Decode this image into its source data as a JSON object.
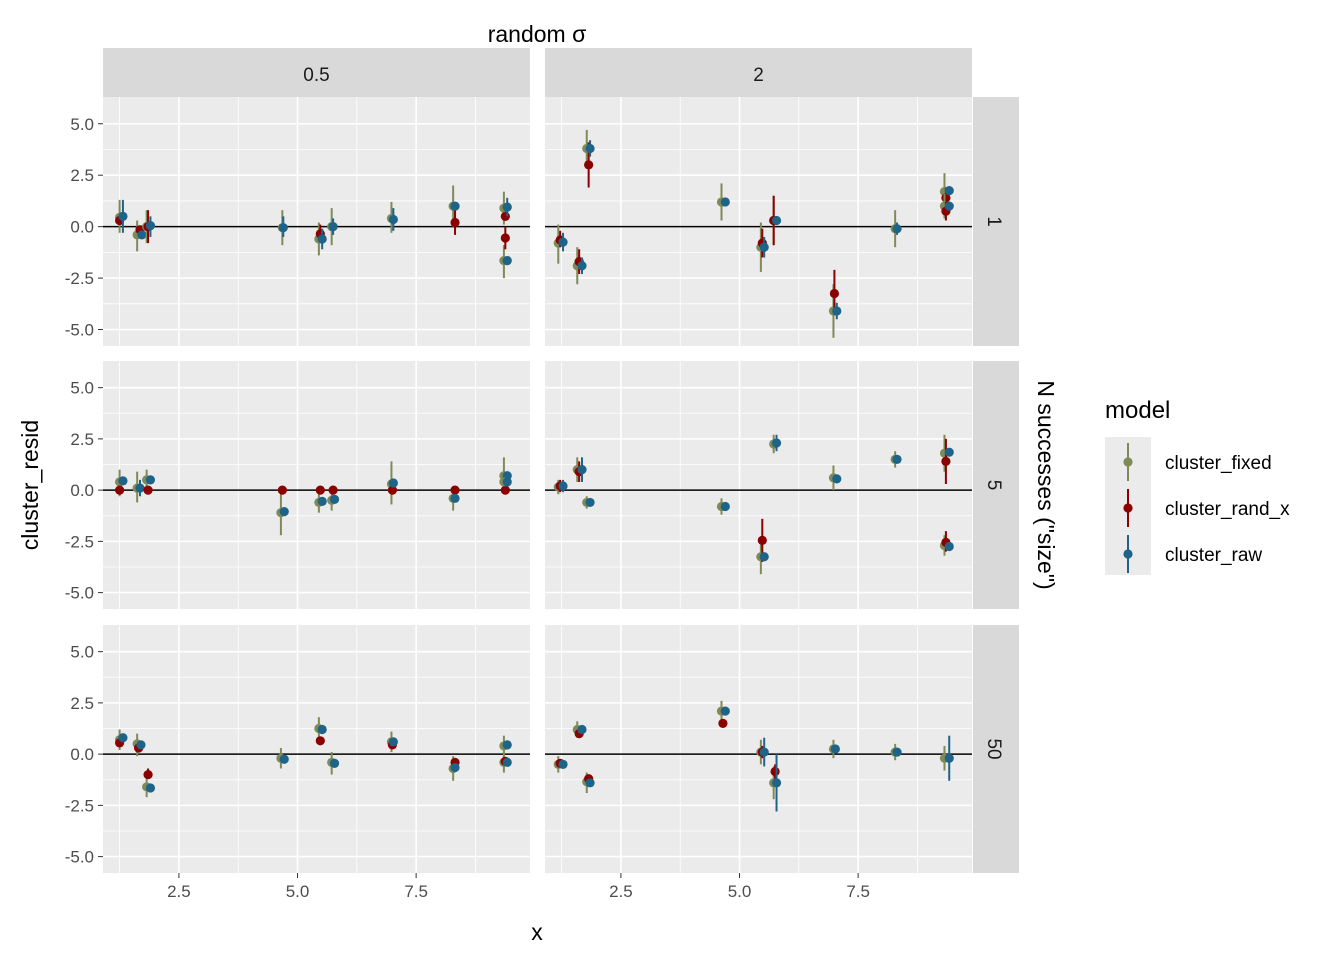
{
  "chart_data": {
    "type": "scatter",
    "title": "",
    "xlabel": "x",
    "ylabel": "cluster_resid",
    "facet_col_title": "random σ",
    "facet_row_title": "N successes (\"size\")",
    "col_labels": [
      "0.5",
      "2"
    ],
    "row_labels": [
      "1",
      "5",
      "50"
    ],
    "xlim": [
      0.9,
      9.9
    ],
    "ylim": [
      -5.8,
      6.3
    ],
    "x_ticks": [
      "2.5",
      "5.0",
      "7.5"
    ],
    "y_ticks": [
      "5.0",
      "2.5",
      "0.0",
      "-2.5",
      "-5.0"
    ],
    "reference_line": 0,
    "grid": true,
    "legend": {
      "title": "model",
      "position": "right",
      "items": [
        {
          "label": "cluster_fixed",
          "color": "#7f8a56"
        },
        {
          "label": "cluster_rand_x",
          "color": "#8b0000"
        },
        {
          "label": "cluster_raw",
          "color": "#1e6488"
        }
      ]
    },
    "series_names": [
      "cluster_fixed",
      "cluster_rand_x",
      "cluster_raw"
    ],
    "colors": [
      "#7f8a56",
      "#8b0000",
      "#1e6488"
    ],
    "panels": [
      {
        "row": 0,
        "col": 0,
        "points": [
          [
            1.25,
            0.45,
            -0.3,
            1.3,
            0
          ],
          [
            1.25,
            0.3,
            0.3,
            0.3,
            1
          ],
          [
            1.32,
            0.5,
            -0.3,
            1.3,
            2
          ],
          [
            1.62,
            -0.4,
            -1.2,
            0.3,
            0
          ],
          [
            1.68,
            -0.15,
            -0.15,
            -0.15,
            1
          ],
          [
            1.72,
            -0.4,
            -0.4,
            -0.4,
            2
          ],
          [
            1.82,
            0.0,
            -0.8,
            0.8,
            0
          ],
          [
            1.85,
            0.0,
            -0.8,
            0.8,
            1
          ],
          [
            1.9,
            0.05,
            -0.5,
            0.5,
            2
          ],
          [
            4.68,
            -0.05,
            -0.9,
            0.8,
            0
          ],
          [
            4.7,
            -0.05,
            -0.5,
            0.5,
            2
          ],
          [
            5.45,
            -0.6,
            -1.4,
            0.2,
            0
          ],
          [
            5.48,
            -0.35,
            -0.6,
            0.1,
            1
          ],
          [
            5.52,
            -0.6,
            -1.1,
            -0.1,
            2
          ],
          [
            5.72,
            0.0,
            -0.9,
            0.9,
            0
          ],
          [
            5.75,
            0.0,
            -0.4,
            0.4,
            2
          ],
          [
            6.98,
            0.4,
            -0.3,
            1.2,
            0
          ],
          [
            7.02,
            0.35,
            -0.2,
            0.9,
            2
          ],
          [
            8.28,
            1.0,
            0.0,
            2.0,
            0
          ],
          [
            8.32,
            0.2,
            -0.4,
            0.8,
            1
          ],
          [
            8.32,
            1.0,
            1.0,
            1.0,
            2
          ],
          [
            9.35,
            0.9,
            0.1,
            1.7,
            0
          ],
          [
            9.38,
            0.5,
            0.5,
            0.5,
            1
          ],
          [
            9.42,
            0.95,
            0.5,
            1.4,
            2
          ],
          [
            9.35,
            -1.65,
            -2.5,
            -0.9,
            0
          ],
          [
            9.38,
            -0.55,
            -1.1,
            0.0,
            1
          ],
          [
            9.42,
            -1.65,
            -1.65,
            -1.65,
            2
          ]
        ]
      },
      {
        "row": 0,
        "col": 1,
        "points": [
          [
            1.18,
            -0.8,
            -1.8,
            0.1,
            0
          ],
          [
            1.22,
            -0.65,
            -1.0,
            -0.2,
            1
          ],
          [
            1.28,
            -0.75,
            -1.2,
            -0.3,
            2
          ],
          [
            1.58,
            -1.9,
            -2.8,
            -1.0,
            0
          ],
          [
            1.62,
            -1.7,
            -2.3,
            -1.1,
            1
          ],
          [
            1.68,
            -1.9,
            -2.3,
            -1.5,
            2
          ],
          [
            1.78,
            3.8,
            2.9,
            4.7,
            0
          ],
          [
            1.82,
            3.0,
            1.9,
            4.1,
            1
          ],
          [
            1.85,
            3.8,
            3.4,
            4.2,
            2
          ],
          [
            4.62,
            1.2,
            0.3,
            2.1,
            0
          ],
          [
            4.7,
            1.2,
            1.2,
            1.2,
            2
          ],
          [
            5.45,
            -1.0,
            -2.2,
            0.2,
            0
          ],
          [
            5.48,
            -0.8,
            -1.5,
            -0.1,
            1
          ],
          [
            5.52,
            -1.0,
            -1.5,
            -0.5,
            2
          ],
          [
            5.72,
            0.3,
            -0.9,
            1.5,
            0
          ],
          [
            5.72,
            0.3,
            -0.9,
            1.5,
            1
          ],
          [
            5.78,
            0.3,
            0.3,
            0.3,
            2
          ],
          [
            6.98,
            -4.1,
            -5.4,
            -2.8,
            0
          ],
          [
            7.0,
            -3.25,
            -4.3,
            -2.1,
            1
          ],
          [
            7.05,
            -4.1,
            -4.5,
            -3.7,
            2
          ],
          [
            8.28,
            -0.1,
            -1.0,
            0.8,
            0
          ],
          [
            8.32,
            -0.1,
            -0.4,
            0.2,
            2
          ],
          [
            9.32,
            1.7,
            0.8,
            2.6,
            0
          ],
          [
            9.35,
            1.4,
            0.9,
            1.9,
            1
          ],
          [
            9.42,
            1.75,
            1.75,
            1.75,
            2
          ],
          [
            9.32,
            1.0,
            0.4,
            1.6,
            0
          ],
          [
            9.35,
            0.75,
            0.3,
            1.2,
            1
          ],
          [
            9.42,
            1.0,
            1.0,
            1.0,
            2
          ]
        ]
      },
      {
        "row": 1,
        "col": 0,
        "points": [
          [
            1.25,
            0.4,
            -0.3,
            1.0,
            0
          ],
          [
            1.25,
            0.0,
            0.0,
            0.0,
            1
          ],
          [
            1.32,
            0.45,
            0.45,
            0.45,
            2
          ],
          [
            1.62,
            0.1,
            -0.6,
            0.9,
            0
          ],
          [
            1.68,
            0.1,
            -0.3,
            0.5,
            2
          ],
          [
            1.82,
            0.5,
            -0.1,
            1.0,
            0
          ],
          [
            1.85,
            0.0,
            0.0,
            0.0,
            1
          ],
          [
            1.9,
            0.5,
            0.5,
            0.5,
            2
          ],
          [
            4.65,
            -1.1,
            -2.2,
            0.0,
            0
          ],
          [
            4.68,
            0.0,
            0.0,
            0.0,
            1
          ],
          [
            4.72,
            -1.05,
            -1.05,
            -1.05,
            2
          ],
          [
            5.45,
            -0.6,
            -1.1,
            -0.1,
            0
          ],
          [
            5.48,
            0.0,
            0.0,
            0.0,
            1
          ],
          [
            5.52,
            -0.55,
            -0.55,
            -0.55,
            2
          ],
          [
            5.72,
            -0.5,
            -1.0,
            0.0,
            0
          ],
          [
            5.75,
            0.0,
            0.0,
            0.0,
            1
          ],
          [
            5.78,
            -0.45,
            -0.45,
            -0.45,
            2
          ],
          [
            6.98,
            0.3,
            -0.7,
            1.4,
            0
          ],
          [
            7.0,
            0.0,
            0.0,
            0.0,
            1
          ],
          [
            7.02,
            0.35,
            0.35,
            0.35,
            2
          ],
          [
            8.28,
            -0.4,
            -1.0,
            0.2,
            0
          ],
          [
            8.32,
            0.0,
            0.0,
            0.0,
            1
          ],
          [
            8.32,
            -0.4,
            -0.4,
            -0.4,
            2
          ],
          [
            9.35,
            0.7,
            -0.2,
            1.6,
            0
          ],
          [
            9.38,
            0.0,
            0.0,
            0.0,
            1
          ],
          [
            9.42,
            0.7,
            0.7,
            0.7,
            2
          ],
          [
            9.35,
            0.4,
            0.4,
            0.4,
            0
          ],
          [
            9.42,
            0.4,
            0.4,
            0.4,
            2
          ]
        ]
      },
      {
        "row": 1,
        "col": 1,
        "points": [
          [
            1.18,
            0.15,
            -0.2,
            0.5,
            0
          ],
          [
            1.22,
            0.2,
            -0.1,
            0.5,
            1
          ],
          [
            1.28,
            0.2,
            -0.1,
            0.5,
            2
          ],
          [
            1.58,
            1.0,
            0.4,
            1.6,
            0
          ],
          [
            1.62,
            0.9,
            0.4,
            1.4,
            1
          ],
          [
            1.68,
            1.0,
            0.4,
            1.6,
            2
          ],
          [
            1.78,
            -0.6,
            -0.9,
            -0.3,
            0
          ],
          [
            1.85,
            -0.6,
            -0.6,
            -0.6,
            2
          ],
          [
            4.62,
            -0.8,
            -1.2,
            -0.4,
            0
          ],
          [
            4.7,
            -0.8,
            -0.8,
            -0.8,
            2
          ],
          [
            5.45,
            -3.25,
            -4.1,
            -2.4,
            0
          ],
          [
            5.48,
            -2.45,
            -3.5,
            -1.4,
            1
          ],
          [
            5.52,
            -3.25,
            -3.25,
            -3.25,
            2
          ],
          [
            5.72,
            2.25,
            1.8,
            2.7,
            0
          ],
          [
            5.78,
            2.3,
            1.9,
            2.7,
            2
          ],
          [
            6.98,
            0.6,
            0.0,
            1.2,
            0
          ],
          [
            7.05,
            0.55,
            0.55,
            0.55,
            2
          ],
          [
            8.28,
            1.5,
            1.1,
            1.9,
            0
          ],
          [
            8.32,
            1.5,
            1.5,
            1.5,
            2
          ],
          [
            9.32,
            1.8,
            0.9,
            2.7,
            0
          ],
          [
            9.35,
            1.4,
            0.3,
            2.5,
            1
          ],
          [
            9.42,
            1.85,
            1.85,
            1.85,
            2
          ],
          [
            9.32,
            -2.7,
            -3.2,
            -2.2,
            0
          ],
          [
            9.35,
            -2.55,
            -3.0,
            -2.0,
            1
          ],
          [
            9.42,
            -2.75,
            -2.75,
            -2.75,
            2
          ]
        ]
      },
      {
        "row": 2,
        "col": 0,
        "points": [
          [
            1.25,
            0.7,
            0.2,
            1.2,
            0
          ],
          [
            1.25,
            0.55,
            0.55,
            0.55,
            1
          ],
          [
            1.32,
            0.8,
            0.8,
            0.8,
            2
          ],
          [
            1.62,
            0.5,
            -0.1,
            1.0,
            0
          ],
          [
            1.65,
            0.3,
            0.3,
            0.3,
            1
          ],
          [
            1.7,
            0.45,
            0.45,
            0.45,
            2
          ],
          [
            1.82,
            -1.6,
            -2.1,
            -1.1,
            0
          ],
          [
            1.85,
            -1.0,
            -1.2,
            -0.7,
            1
          ],
          [
            1.9,
            -1.65,
            -1.65,
            -1.65,
            2
          ],
          [
            4.65,
            -0.2,
            -0.7,
            0.3,
            0
          ],
          [
            4.72,
            -0.25,
            -0.25,
            -0.25,
            2
          ],
          [
            5.45,
            1.25,
            0.7,
            1.8,
            0
          ],
          [
            5.48,
            0.65,
            0.65,
            0.65,
            1
          ],
          [
            5.52,
            1.2,
            1.2,
            1.2,
            2
          ],
          [
            5.72,
            -0.4,
            -1.0,
            0.1,
            0
          ],
          [
            5.78,
            -0.45,
            -0.45,
            -0.45,
            2
          ],
          [
            6.98,
            0.6,
            0.1,
            1.1,
            0
          ],
          [
            7.0,
            0.45,
            0.45,
            0.45,
            1
          ],
          [
            7.02,
            0.6,
            0.6,
            0.6,
            2
          ],
          [
            8.28,
            -0.7,
            -1.3,
            -0.1,
            0
          ],
          [
            8.32,
            -0.4,
            -0.4,
            -0.4,
            1
          ],
          [
            8.32,
            -0.65,
            -0.65,
            -0.65,
            2
          ],
          [
            9.35,
            0.4,
            -0.2,
            0.9,
            0
          ],
          [
            9.42,
            0.45,
            0.45,
            0.45,
            2
          ],
          [
            9.35,
            -0.4,
            -0.9,
            0.1,
            0
          ],
          [
            9.38,
            -0.35,
            -0.35,
            -0.35,
            1
          ],
          [
            9.42,
            -0.4,
            -0.4,
            -0.4,
            2
          ]
        ]
      },
      {
        "row": 2,
        "col": 1,
        "points": [
          [
            1.18,
            -0.5,
            -0.9,
            -0.1,
            0
          ],
          [
            1.22,
            -0.45,
            -0.45,
            -0.45,
            1
          ],
          [
            1.28,
            -0.5,
            -0.5,
            -0.5,
            2
          ],
          [
            1.58,
            1.2,
            0.8,
            1.6,
            0
          ],
          [
            1.62,
            1.0,
            1.0,
            1.0,
            1
          ],
          [
            1.68,
            1.2,
            1.2,
            1.2,
            2
          ],
          [
            1.78,
            -1.35,
            -1.9,
            -0.9,
            0
          ],
          [
            1.82,
            -1.2,
            -1.2,
            -1.2,
            1
          ],
          [
            1.85,
            -1.4,
            -1.4,
            -1.4,
            2
          ],
          [
            4.62,
            2.1,
            1.6,
            2.6,
            0
          ],
          [
            4.65,
            1.5,
            1.5,
            1.5,
            1
          ],
          [
            4.7,
            2.1,
            2.1,
            2.1,
            2
          ],
          [
            5.45,
            0.1,
            -0.5,
            0.7,
            0
          ],
          [
            5.48,
            0.1,
            -0.2,
            0.4,
            1
          ],
          [
            5.52,
            0.1,
            -0.6,
            0.8,
            2
          ],
          [
            5.72,
            -1.4,
            -2.2,
            -0.6,
            0
          ],
          [
            5.75,
            -0.85,
            -1.2,
            -0.5,
            1
          ],
          [
            5.78,
            -1.4,
            -2.8,
            0.0,
            2
          ],
          [
            6.98,
            0.25,
            -0.2,
            0.7,
            0
          ],
          [
            7.02,
            0.25,
            0.25,
            0.25,
            2
          ],
          [
            8.28,
            0.1,
            -0.3,
            0.5,
            0
          ],
          [
            8.32,
            0.1,
            0.1,
            0.1,
            2
          ],
          [
            9.32,
            -0.2,
            -0.8,
            0.4,
            0
          ],
          [
            9.42,
            -0.2,
            -1.3,
            0.9,
            2
          ]
        ]
      }
    ]
  }
}
